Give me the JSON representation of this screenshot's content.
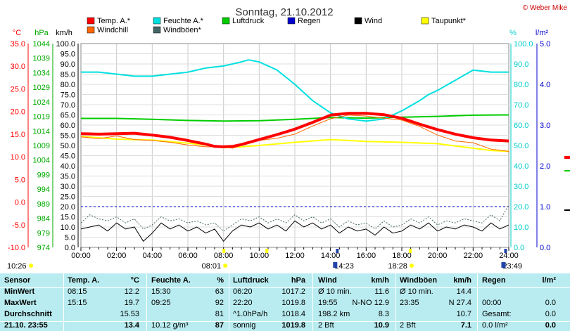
{
  "header": {
    "title": "Sonntag, 21.10.2012",
    "credit": "© Weber Mike"
  },
  "chart_data": {
    "type": "line",
    "x_ticks": [
      "00:00",
      "02:00",
      "04:00",
      "06:00",
      "08:00",
      "10:00",
      "12:00",
      "14:00",
      "16:00",
      "18:00",
      "20:00",
      "22:00",
      "24:00"
    ],
    "axes": {
      "temp": {
        "unit": "°C",
        "min": -10,
        "max": 35,
        "step": 5,
        "color": "#ff0000"
      },
      "pressure": {
        "unit": "hPa",
        "min": 974,
        "max": 1044,
        "step": 5,
        "color": "#00aa00"
      },
      "speed": {
        "unit": "km/h",
        "min": 0,
        "max": 100,
        "step": 5,
        "color": "#000000"
      },
      "humidity": {
        "unit": "%",
        "min": 0,
        "max": 100,
        "step": 10,
        "color": "#00cccc"
      },
      "rain": {
        "unit": "l/m²",
        "min": 0,
        "max": 5,
        "step": 1,
        "color": "#0000cc"
      }
    },
    "legend": [
      {
        "label": "Temp. A.*",
        "color": "#ff0000"
      },
      {
        "label": "Feuchte A.*",
        "color": "#00e0e0"
      },
      {
        "label": "Luftdruck",
        "color": "#00cc00"
      },
      {
        "label": "Regen",
        "color": "#0000cc"
      },
      {
        "label": "Wind",
        "color": "#000000"
      },
      {
        "label": "Taupunkt*",
        "color": "#ffff00"
      },
      {
        "label": "Windchill",
        "color": "#ff6600"
      },
      {
        "label": "Windböen*",
        "color": "#446666"
      }
    ],
    "series": [
      {
        "name": "Temp. A.*",
        "color": "#ff0000",
        "axis": "temp",
        "width": 4,
        "x": [
          0,
          1,
          2,
          3,
          4,
          5,
          6,
          7,
          7.5,
          8,
          8.5,
          9,
          10,
          11,
          12,
          13,
          14,
          15,
          16,
          17,
          18,
          19,
          20,
          21,
          22,
          23,
          24
        ],
        "y": [
          15.1,
          15.0,
          15.1,
          15.2,
          14.8,
          14.3,
          13.6,
          12.8,
          12.3,
          12.2,
          12.3,
          12.7,
          13.8,
          14.9,
          16.1,
          17.6,
          19.2,
          19.6,
          19.6,
          19.3,
          18.5,
          17.2,
          16.0,
          15.0,
          14.2,
          13.7,
          13.5
        ]
      },
      {
        "name": "Feuchte A.*",
        "color": "#00e0e0",
        "axis": "humidity",
        "width": 2,
        "x": [
          0,
          1,
          2,
          3,
          4,
          5,
          6,
          7,
          8,
          9,
          9.4,
          10,
          11,
          12,
          13,
          14,
          15,
          16,
          17,
          18,
          19,
          19.5,
          20,
          21,
          22,
          23,
          24
        ],
        "y": [
          86,
          86,
          85,
          84,
          84,
          85,
          86,
          88,
          89,
          91,
          92,
          91,
          87,
          80,
          72,
          66,
          63,
          62,
          63,
          67,
          72,
          75,
          77,
          82,
          87,
          86,
          86
        ]
      },
      {
        "name": "Luftdruck",
        "color": "#00cc00",
        "axis": "pressure",
        "width": 2,
        "x": [
          0,
          2,
          4,
          6,
          8,
          10,
          12,
          14,
          16,
          18,
          20,
          22,
          24
        ],
        "y": [
          1018.3,
          1018.3,
          1018.0,
          1017.6,
          1017.4,
          1017.5,
          1018.0,
          1018.6,
          1018.4,
          1018.7,
          1019.0,
          1019.4,
          1019.5
        ]
      },
      {
        "name": "Taupunkt*",
        "color": "#ffff00",
        "axis": "temp",
        "width": 2,
        "x": [
          0,
          2,
          4,
          6,
          7,
          8,
          9,
          10,
          12,
          14,
          16,
          18,
          20,
          22,
          23,
          24
        ],
        "y": [
          14.5,
          13.9,
          13.7,
          13.0,
          12.6,
          12.0,
          12.2,
          12.5,
          13.2,
          13.8,
          13.4,
          13.2,
          12.9,
          11.9,
          11.4,
          11.2
        ]
      },
      {
        "name": "Windchill",
        "color": "#ff6600",
        "axis": "temp",
        "width": 1,
        "x": [
          0,
          1,
          2,
          3,
          4,
          5,
          6,
          7,
          8,
          8.5,
          9,
          10,
          11,
          12,
          13,
          14,
          14.5,
          15,
          16,
          17,
          18,
          19,
          20,
          21,
          22,
          23,
          24
        ],
        "y": [
          14.4,
          14.0,
          14.6,
          13.8,
          13.6,
          13.2,
          12.6,
          12.2,
          12.2,
          11.9,
          12.5,
          13.6,
          14.1,
          15.0,
          16.8,
          18.4,
          18.8,
          19.2,
          19.0,
          18.5,
          18.1,
          16.7,
          14.8,
          13.5,
          13.1,
          11.7,
          11.2
        ]
      },
      {
        "name": "Wind",
        "color": "#000000",
        "axis": "speed",
        "width": 1,
        "x": [
          0,
          0.5,
          1,
          1.5,
          2,
          2.5,
          3,
          3.5,
          4,
          4.5,
          5,
          5.5,
          6,
          6.5,
          7,
          7.5,
          8,
          8.5,
          9,
          9.5,
          10,
          10.5,
          11,
          11.5,
          12,
          12.5,
          13,
          13.5,
          14,
          14.5,
          15,
          15.5,
          16,
          16.5,
          17,
          17.5,
          18,
          18.5,
          19,
          19.5,
          20,
          20.5,
          21,
          21.5,
          22,
          22.5,
          23,
          23.5,
          24
        ],
        "y": [
          9,
          10,
          11,
          8,
          12,
          9,
          10,
          3,
          7,
          12,
          9,
          11,
          8,
          10,
          7,
          9,
          3,
          8,
          11,
          10,
          12,
          9,
          11,
          8,
          13,
          10,
          12,
          9,
          11,
          7,
          10,
          8,
          9,
          6,
          10,
          7,
          8,
          11,
          9,
          12,
          8,
          10,
          9,
          11,
          10,
          8,
          12,
          9,
          11
        ]
      },
      {
        "name": "Windböen*",
        "color": "#446666",
        "axis": "speed",
        "width": 1,
        "dash": "2,2",
        "x": [
          0,
          0.5,
          1,
          1.5,
          2,
          2.5,
          3,
          3.5,
          4,
          4.5,
          5,
          5.5,
          6,
          6.5,
          7,
          7.5,
          8,
          8.5,
          9,
          9.5,
          10,
          10.5,
          11,
          11.5,
          12,
          12.5,
          13,
          13.5,
          14,
          14.5,
          15,
          15.5,
          16,
          16.5,
          17,
          17.5,
          18,
          18.5,
          19,
          19.5,
          20,
          20.5,
          21,
          21.5,
          22,
          22.5,
          23,
          23.5,
          24
        ],
        "y": [
          12,
          16,
          14,
          13,
          15,
          12,
          14,
          9,
          11,
          15,
          13,
          14,
          12,
          13,
          11,
          12,
          8,
          11,
          14,
          13,
          15,
          12,
          14,
          12,
          16,
          13,
          15,
          12,
          14,
          10,
          13,
          11,
          12,
          9,
          13,
          10,
          11,
          14,
          12,
          15,
          11,
          13,
          12,
          14,
          13,
          12,
          16,
          13,
          21
        ]
      }
    ],
    "reference": {
      "name": "Regen",
      "value": 1.0,
      "axis": "rain",
      "color": "#0000cc"
    },
    "markers": [
      {
        "label": "10:26",
        "time": 10.43,
        "row": "bottom",
        "color": "#ffff00"
      },
      {
        "label": "08:01",
        "time": 8.02,
        "row": "top",
        "color": "#ffff00"
      },
      {
        "label": "14:23",
        "time": 14.38,
        "row": "top",
        "color": "#2244aa"
      },
      {
        "label": "18:28",
        "time": 18.47,
        "row": "top",
        "color": "#ffff00"
      },
      {
        "label": "23:49",
        "time": 23.82,
        "row": "top",
        "color": "#2244aa"
      }
    ]
  },
  "table": {
    "headers": [
      "Sensor",
      "Temp. A.",
      "°C",
      "Feuchte A.",
      "%",
      "Luftdruck",
      "hPa",
      "Wind",
      "km/h",
      "Windböen",
      "km/h",
      "Regen",
      "l/m²"
    ],
    "rows": [
      [
        "MinWert",
        "08:15",
        "12.2",
        "15:30",
        "63",
        "06:20",
        "1017.2",
        "Ø 10 min.",
        "11.6",
        "Ø 10 min.",
        "14.4",
        "",
        ""
      ],
      [
        "MaxWert",
        "15:15",
        "19.7",
        "09:25",
        "92",
        "22:20",
        "1019.8",
        "19:55",
        "N-NO 12.9",
        "23:35",
        "N 27.4",
        "00:00",
        "0.0"
      ],
      [
        "Durchschnitt",
        "",
        "15.53",
        "",
        "81",
        "^1.0hPa/h",
        "1018.4",
        "198.2 km",
        "8.3",
        "",
        "10.7",
        "Gesamt:",
        "0.0"
      ],
      [
        "21.10. 23:55",
        "",
        "13.4",
        "10.12 g/m³",
        "87",
        "sonnig",
        "1019.8",
        "2 Bft",
        "10.9",
        "2 Bft",
        "7.1",
        "0.0 l/m²",
        "0.0"
      ]
    ]
  }
}
